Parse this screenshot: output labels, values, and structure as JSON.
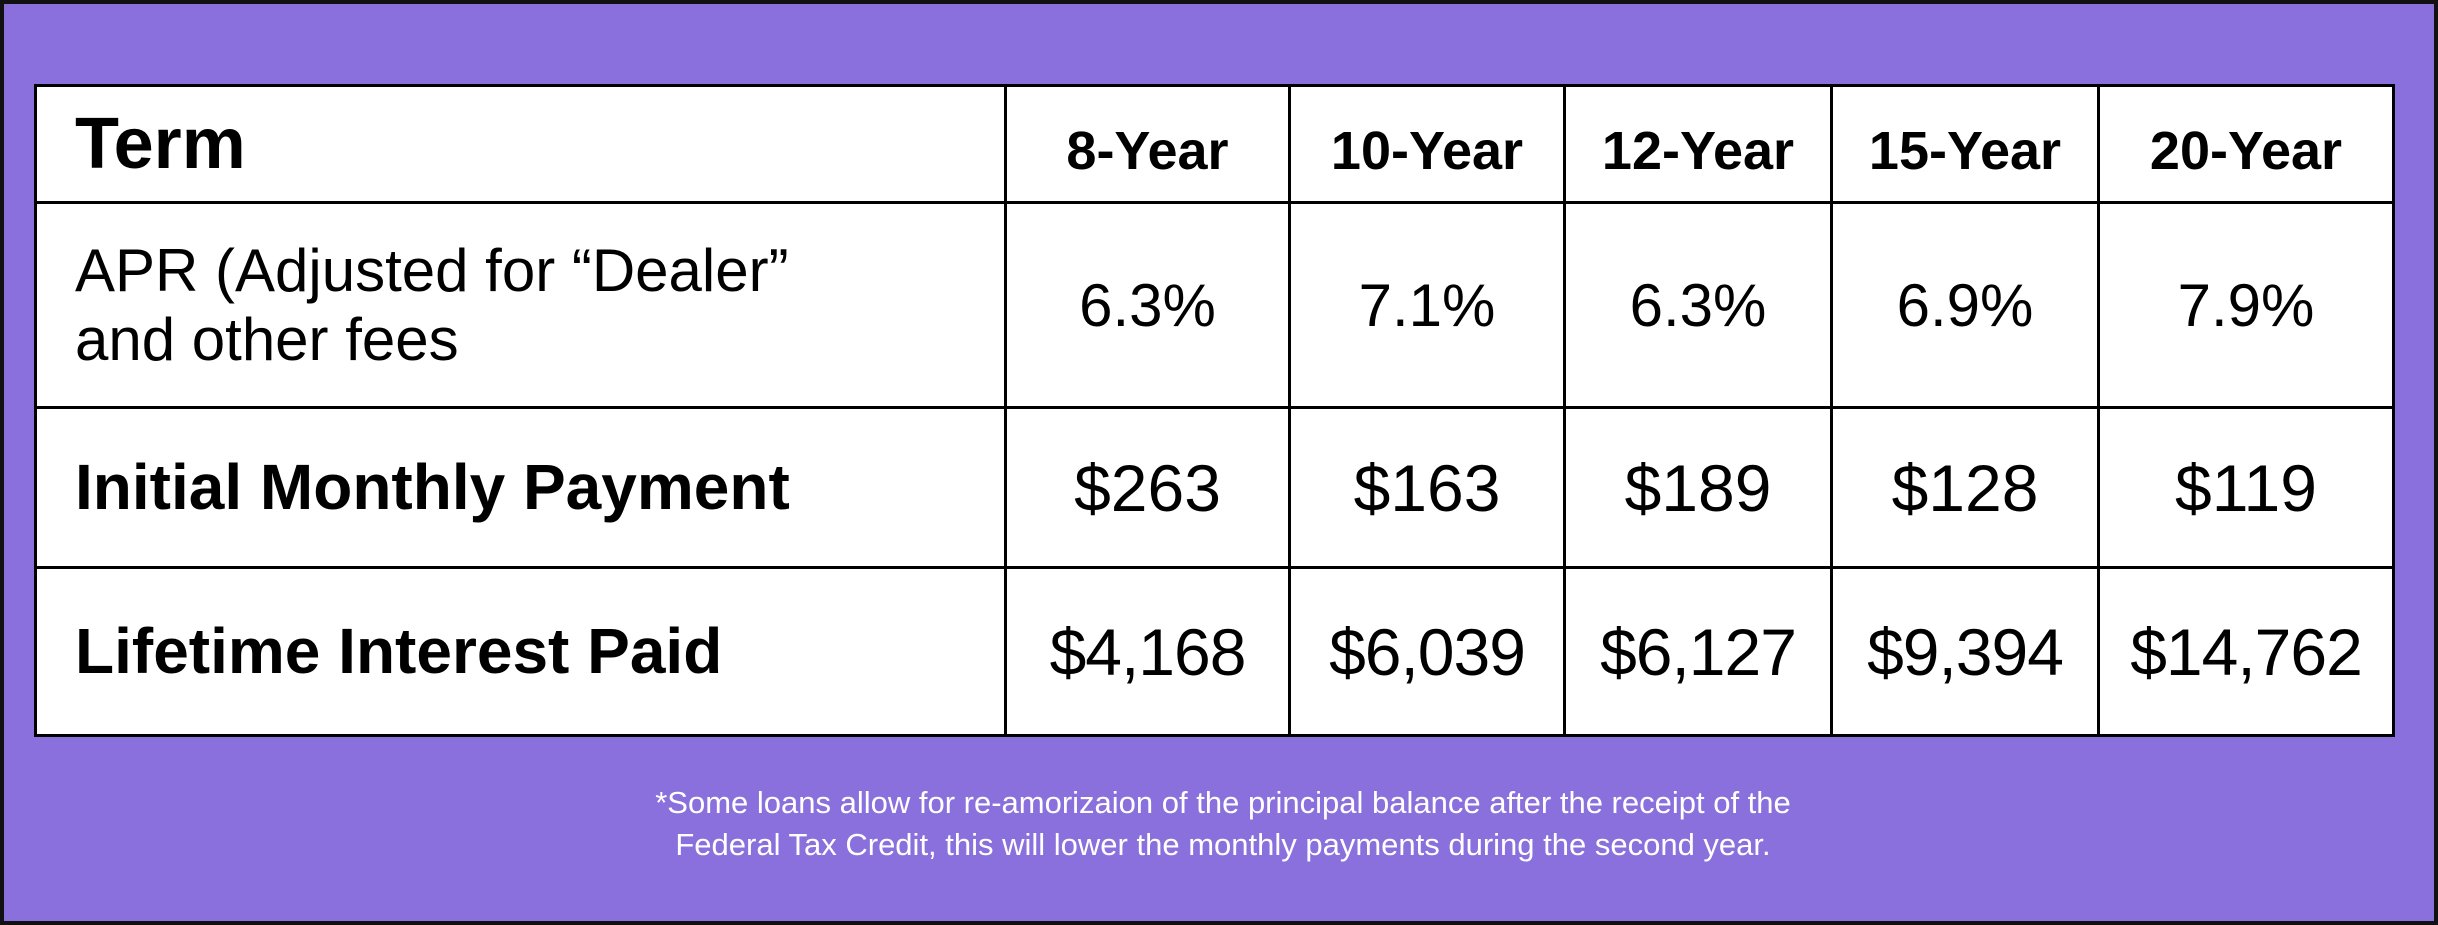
{
  "colors": {
    "background": "#8a70dc",
    "table_background": "#ffffff",
    "border": "#000000",
    "footnote_text": "#ffffff"
  },
  "table": {
    "header": {
      "label": "Term",
      "terms": [
        "8-Year",
        "10-Year",
        "12-Year",
        "15-Year",
        "20-Year"
      ]
    },
    "rows": [
      {
        "label_lines": [
          "APR (Adjusted for “Dealer”",
          "and other fees"
        ],
        "values": [
          "6.3%",
          "7.1%",
          "6.3%",
          "6.9%",
          "7.9%"
        ]
      },
      {
        "label": "Initial Monthly Payment",
        "values": [
          "$263",
          "$163",
          "$189",
          "$128",
          "$119"
        ]
      },
      {
        "label": "Lifetime Interest Paid",
        "values": [
          "$4,168",
          "$6,039",
          "$6,127",
          "$9,394",
          "$14,762"
        ]
      }
    ]
  },
  "footnote": {
    "lines": [
      "*Some loans allow for re-amorizaion of the principal balance after the receipt of the",
      "Federal Tax Credit, this will lower the monthly payments during the second year."
    ]
  }
}
